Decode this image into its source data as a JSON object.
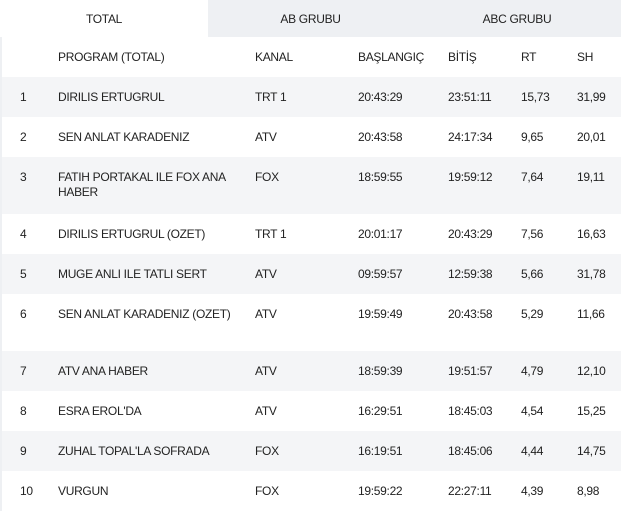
{
  "tabs": [
    "TOTAL",
    "AB GRUBU",
    "ABC GRUBU"
  ],
  "columns": [
    "",
    "PROGRAM (TOTAL)",
    "KANAL",
    "BAŞLANGIÇ",
    "BİTİŞ",
    "RT",
    "SH"
  ],
  "rows": [
    [
      "1",
      "DIRILIS ERTUGRUL",
      "TRT 1",
      "20:43:29",
      "23:51:11",
      "15,73",
      "31,99"
    ],
    [
      "2",
      "SEN ANLAT KARADENIZ",
      "ATV",
      "20:43:58",
      "24:17:34",
      "9,65",
      "20,01"
    ],
    [
      "3",
      "FATIH PORTAKAL ILE FOX ANA HABER",
      "FOX",
      "18:59:55",
      "19:59:12",
      "7,64",
      "19,11"
    ],
    [
      "4",
      "DIRILIS ERTUGRUL (OZET)",
      "TRT 1",
      "20:01:17",
      "20:43:29",
      "7,56",
      "16,63"
    ],
    [
      "5",
      "MUGE ANLI ILE TATLI SERT",
      "ATV",
      "09:59:57",
      "12:59:38",
      "5,66",
      "31,78"
    ],
    [
      "6",
      "SEN ANLAT KARADENIZ (OZET)",
      "ATV",
      "19:59:49",
      "20:43:58",
      "5,29",
      "11,66"
    ],
    [
      "7",
      "ATV ANA HABER",
      "ATV",
      "18:59:39",
      "19:51:57",
      "4,79",
      "12,10"
    ],
    [
      "8",
      "ESRA EROL'DA",
      "ATV",
      "16:29:51",
      "18:45:03",
      "4,54",
      "15,25"
    ],
    [
      "9",
      "ZUHAL TOPAL'LA SOFRADA",
      "FOX",
      "16:19:51",
      "18:45:06",
      "4,44",
      "14,75"
    ],
    [
      "10",
      "VURGUN",
      "FOX",
      "19:59:22",
      "22:27:11",
      "4,39",
      "8,98"
    ]
  ]
}
